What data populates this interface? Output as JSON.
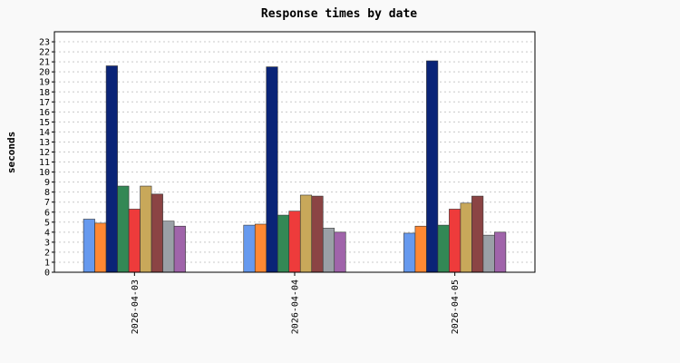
{
  "chart_data": {
    "type": "bar",
    "title": "Response times by date",
    "xlabel": "",
    "ylabel": "seconds",
    "ylim": [
      0,
      24
    ],
    "yticks": [
      0,
      1,
      2,
      3,
      4,
      5,
      6,
      7,
      8,
      9,
      10,
      11,
      12,
      13,
      14,
      15,
      16,
      17,
      18,
      19,
      20,
      21,
      22,
      23
    ],
    "grid": true,
    "categories": [
      "2026-04-03",
      "2026-04-04",
      "2026-04-05"
    ],
    "series": [
      {
        "color": "#6699ee",
        "values": [
          5.3,
          4.7,
          3.9
        ]
      },
      {
        "color": "#ff8833",
        "values": [
          4.9,
          4.8,
          4.6
        ]
      },
      {
        "color": "#0a2477",
        "values": [
          20.6,
          20.5,
          21.1
        ]
      },
      {
        "color": "#338855",
        "values": [
          8.6,
          5.7,
          4.7
        ]
      },
      {
        "color": "#ee3b3b",
        "values": [
          6.3,
          6.1,
          6.3
        ]
      },
      {
        "color": "#c8a85a",
        "values": [
          8.6,
          7.7,
          6.9
        ]
      },
      {
        "color": "#8b4444",
        "values": [
          7.8,
          7.6,
          7.6
        ]
      },
      {
        "color": "#9aa0a6",
        "values": [
          5.1,
          4.4,
          3.7
        ]
      },
      {
        "color": "#a064aa",
        "values": [
          4.6,
          4.0,
          4.0
        ]
      }
    ]
  }
}
